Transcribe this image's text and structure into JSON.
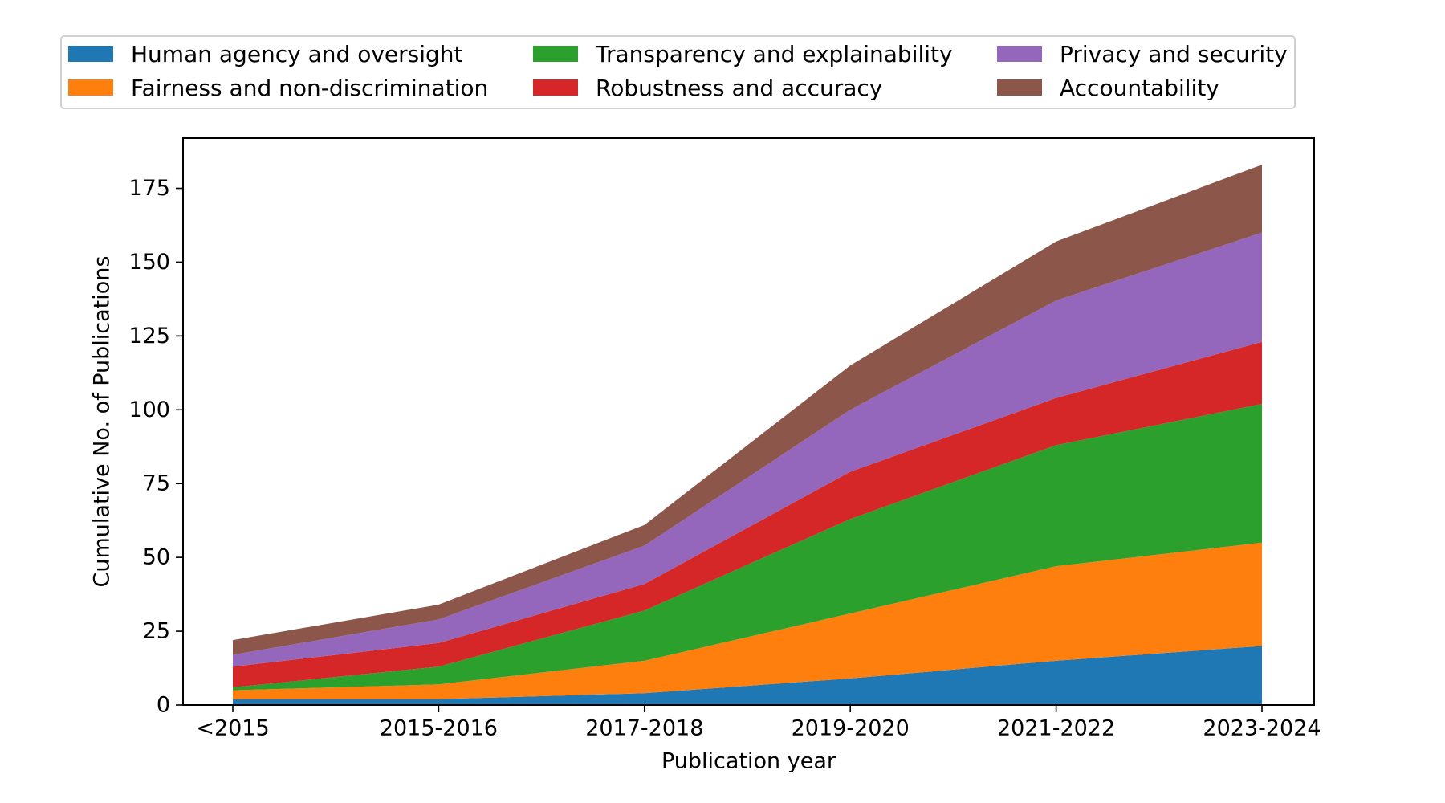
{
  "chart_data": {
    "type": "area",
    "stacked": true,
    "title": "",
    "xlabel": "Publication year",
    "ylabel": "Cumulative No. of Publications",
    "categories": [
      "<2015",
      "2015-2016",
      "2017-2018",
      "2019-2020",
      "2021-2022",
      "2023-2024"
    ],
    "ylim": [
      0,
      192
    ],
    "yticks": [
      0,
      25,
      50,
      75,
      100,
      125,
      150,
      175
    ],
    "legend_position": "top",
    "series": [
      {
        "name": "Human agency and oversight",
        "color": "#1f77b4",
        "values": [
          2,
          2,
          4,
          9,
          15,
          20
        ]
      },
      {
        "name": "Fairness and non-discrimination",
        "color": "#ff7f0e",
        "values": [
          3,
          5,
          11,
          22,
          32,
          35
        ]
      },
      {
        "name": "Transparency and explainability",
        "color": "#2ca02c",
        "values": [
          1,
          6,
          17,
          32,
          41,
          47
        ]
      },
      {
        "name": "Robustness and accuracy",
        "color": "#d62728",
        "values": [
          7,
          8,
          9,
          16,
          16,
          21
        ]
      },
      {
        "name": "Privacy and security",
        "color": "#9467bd",
        "values": [
          4,
          8,
          13,
          21,
          33,
          37
        ]
      },
      {
        "name": "Accountability",
        "color": "#8c564b",
        "values": [
          5,
          5,
          7,
          15,
          20,
          23
        ]
      }
    ]
  }
}
